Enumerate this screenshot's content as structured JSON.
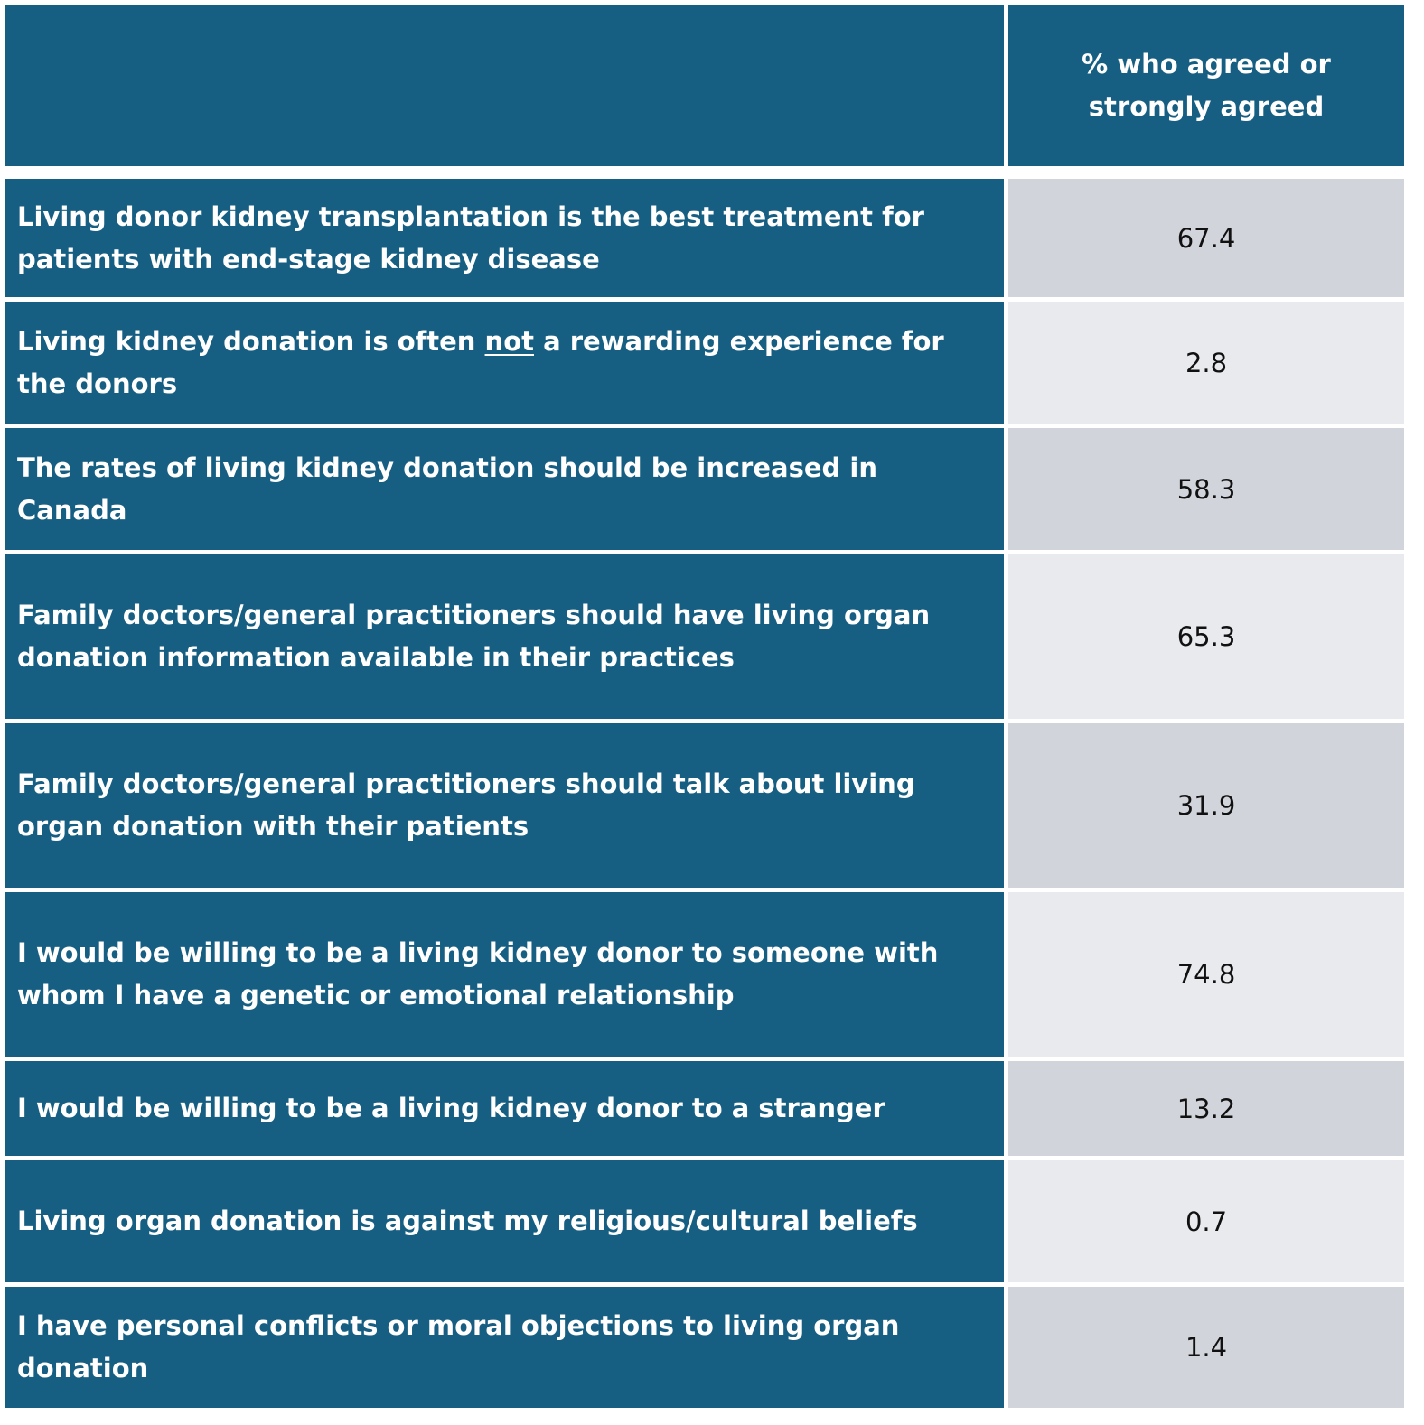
{
  "header": {
    "left": "",
    "right": "% who agreed or strongly agreed"
  },
  "rows": [
    {
      "pre": "Living donor kidney  transplantation is the best treatment for patients with end-stage kidney disease",
      "em": "",
      "post": "",
      "value": "67.4"
    },
    {
      "pre": "Living kidney donation is often ",
      "em": "not",
      "post": " a rewarding experience for the donors",
      "value": "2.8"
    },
    {
      "pre": "The rates of living kidney donation should be increased in Canada",
      "em": "",
      "post": "",
      "value": "58.3"
    },
    {
      "pre": "Family doctors/general practitioners should have living organ donation information available in their practices",
      "em": "",
      "post": "",
      "value": "65.3"
    },
    {
      "pre": "Family doctors/general practitioners should talk about living organ donation with their patients",
      "em": "",
      "post": "",
      "value": "31.9"
    },
    {
      "pre": "I would be willing to be a living kidney donor to someone with whom I have a genetic or emotional relationship",
      "em": "",
      "post": "",
      "value": "74.8"
    },
    {
      "pre": "I would be willing to be a living kidney donor to a stranger",
      "em": "",
      "post": "",
      "value": "13.2"
    },
    {
      "pre": "Living organ donation is against my religious/cultural beliefs",
      "em": "",
      "post": "",
      "value": "0.7"
    },
    {
      "pre": "I have personal conflicts or moral objections to living organ donation",
      "em": "",
      "post": "",
      "value": "1.4"
    }
  ]
}
